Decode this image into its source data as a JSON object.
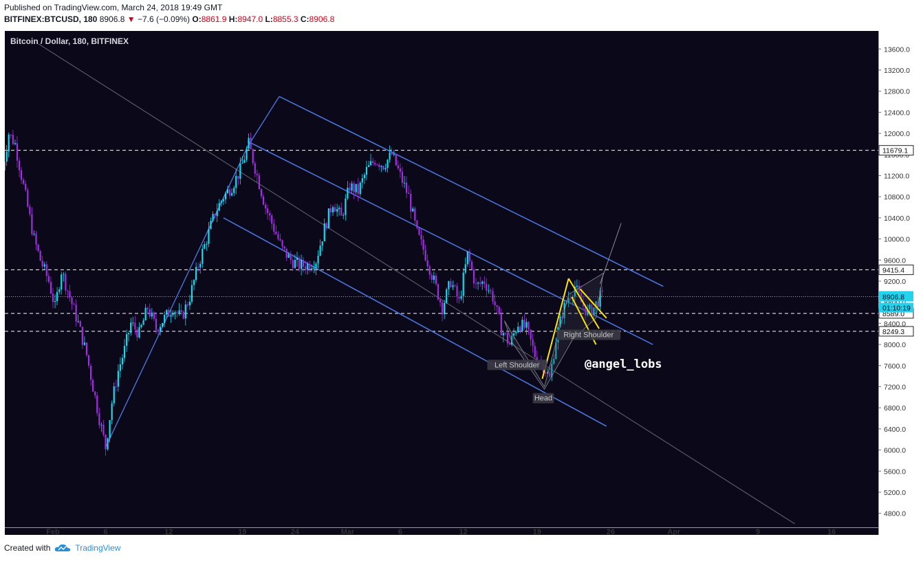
{
  "header": {
    "published": "Published on TradingView.com, March 24, 2018 19:49 GMT",
    "symbol": "BITFINEX:BTCUSD, 180",
    "last": "8906.8",
    "change": "−7.6 (−0.09%)",
    "o_label": "O:",
    "o": "8861.9",
    "h_label": "H:",
    "h": "8947.0",
    "l_label": "L:",
    "l": "8855.3",
    "c_label": "C:",
    "c": "8906.8"
  },
  "chart_data": {
    "type": "candlestick",
    "title": "Bitcoin / Dollar, 180, BITFINEX",
    "ylim": [
      4600,
      13800
    ],
    "y_ticks": [
      4800,
      5200,
      5600,
      6000,
      6400,
      6800,
      7200,
      7600,
      8000,
      8400,
      8800,
      9200,
      9600,
      10000,
      10400,
      10800,
      11200,
      11600,
      12000,
      12400,
      12800,
      13200,
      13600
    ],
    "x_ticks": [
      {
        "label": "Feb",
        "day": 1
      },
      {
        "label": "6",
        "day": 6
      },
      {
        "label": "12",
        "day": 12
      },
      {
        "label": "19",
        "day": 19
      },
      {
        "label": "24",
        "day": 24
      },
      {
        "label": "Mar",
        "day": 29
      },
      {
        "label": "6",
        "day": 34
      },
      {
        "label": "12",
        "day": 40
      },
      {
        "label": "19",
        "day": 47
      },
      {
        "label": "26",
        "day": 54
      },
      {
        "label": "Apr",
        "day": 60
      },
      {
        "label": "9",
        "day": 68
      },
      {
        "label": "16",
        "day": 75
      }
    ],
    "price_path": [
      [
        -3.8,
        11300
      ],
      [
        -3.2,
        12000
      ],
      [
        -2.6,
        11800
      ],
      [
        -2,
        11200
      ],
      [
        -1.4,
        10600
      ],
      [
        -0.8,
        10000
      ],
      [
        -0.2,
        9600
      ],
      [
        0.6,
        9200
      ],
      [
        1.2,
        8700
      ],
      [
        1.8,
        9400
      ],
      [
        2.6,
        8900
      ],
      [
        3.4,
        8400
      ],
      [
        4.2,
        7800
      ],
      [
        4.8,
        7200
      ],
      [
        5.4,
        6600
      ],
      [
        6,
        6050
      ],
      [
        6.6,
        6900
      ],
      [
        7.2,
        7500
      ],
      [
        7.8,
        7900
      ],
      [
        8.4,
        8400
      ],
      [
        9.2,
        8200
      ],
      [
        10,
        8700
      ],
      [
        10.8,
        8300
      ],
      [
        11.6,
        8500
      ],
      [
        12.4,
        8700
      ],
      [
        13.2,
        8500
      ],
      [
        14,
        8900
      ],
      [
        14.8,
        9500
      ],
      [
        15.6,
        10000
      ],
      [
        16.4,
        10500
      ],
      [
        17.2,
        10800
      ],
      [
        18,
        11000
      ],
      [
        18.8,
        11300
      ],
      [
        19.6,
        11800
      ],
      [
        20.4,
        11200
      ],
      [
        21.2,
        10600
      ],
      [
        22,
        10200
      ],
      [
        22.8,
        9800
      ],
      [
        23.6,
        9600
      ],
      [
        24.4,
        9500
      ],
      [
        25.2,
        9500
      ],
      [
        26,
        9600
      ],
      [
        26.8,
        10200
      ],
      [
        27.6,
        10700
      ],
      [
        28.4,
        10400
      ],
      [
        29.2,
        11000
      ],
      [
        30,
        10900
      ],
      [
        30.8,
        11300
      ],
      [
        31.6,
        11500
      ],
      [
        32.4,
        11400
      ],
      [
        33.2,
        11600
      ],
      [
        34,
        11200
      ],
      [
        34.8,
        10800
      ],
      [
        35.6,
        10100
      ],
      [
        36.4,
        9700
      ],
      [
        37.2,
        9200
      ],
      [
        38,
        8700
      ],
      [
        38.8,
        9200
      ],
      [
        39.6,
        8800
      ],
      [
        40.4,
        9700
      ],
      [
        41.2,
        9100
      ],
      [
        42,
        9200
      ],
      [
        42.8,
        8900
      ],
      [
        43.6,
        8300
      ],
      [
        44.4,
        8000
      ],
      [
        45.2,
        8400
      ],
      [
        46,
        8300
      ],
      [
        46.8,
        7800
      ],
      [
        47.6,
        7600
      ],
      [
        48.2,
        7350
      ],
      [
        48.8,
        8100
      ],
      [
        49.4,
        8600
      ],
      [
        50,
        8900
      ],
      [
        50.6,
        9100
      ],
      [
        51.2,
        8800
      ],
      [
        51.8,
        8600
      ],
      [
        52.4,
        8700
      ],
      [
        53,
        8900
      ],
      [
        53.4,
        8906.8
      ]
    ],
    "last_price": "8906.8",
    "countdown": "01:10:19",
    "h_levels": [
      {
        "value": 11679.1,
        "label": "11679.1"
      },
      {
        "value": 9415.4,
        "label": "9415.4"
      },
      {
        "value": 8589.0,
        "label": "8589.0"
      },
      {
        "value": 8249.3,
        "label": "8249.3"
      }
    ],
    "annotations": {
      "left_shoulder": "Left Shoulder",
      "head": "Head",
      "right_shoulder": "Right Shoulder",
      "author": "@angel_lobs"
    },
    "colors": {
      "background": "#0b0819",
      "up": "#19d9ee",
      "down": "#9f2fe0",
      "channel": "#4a74d8",
      "line": "#5a5a62",
      "pattern": "#ffe600",
      "last_price": "#22d3ee"
    }
  },
  "footer": {
    "created_with": "Created with",
    "brand": "TradingView"
  }
}
